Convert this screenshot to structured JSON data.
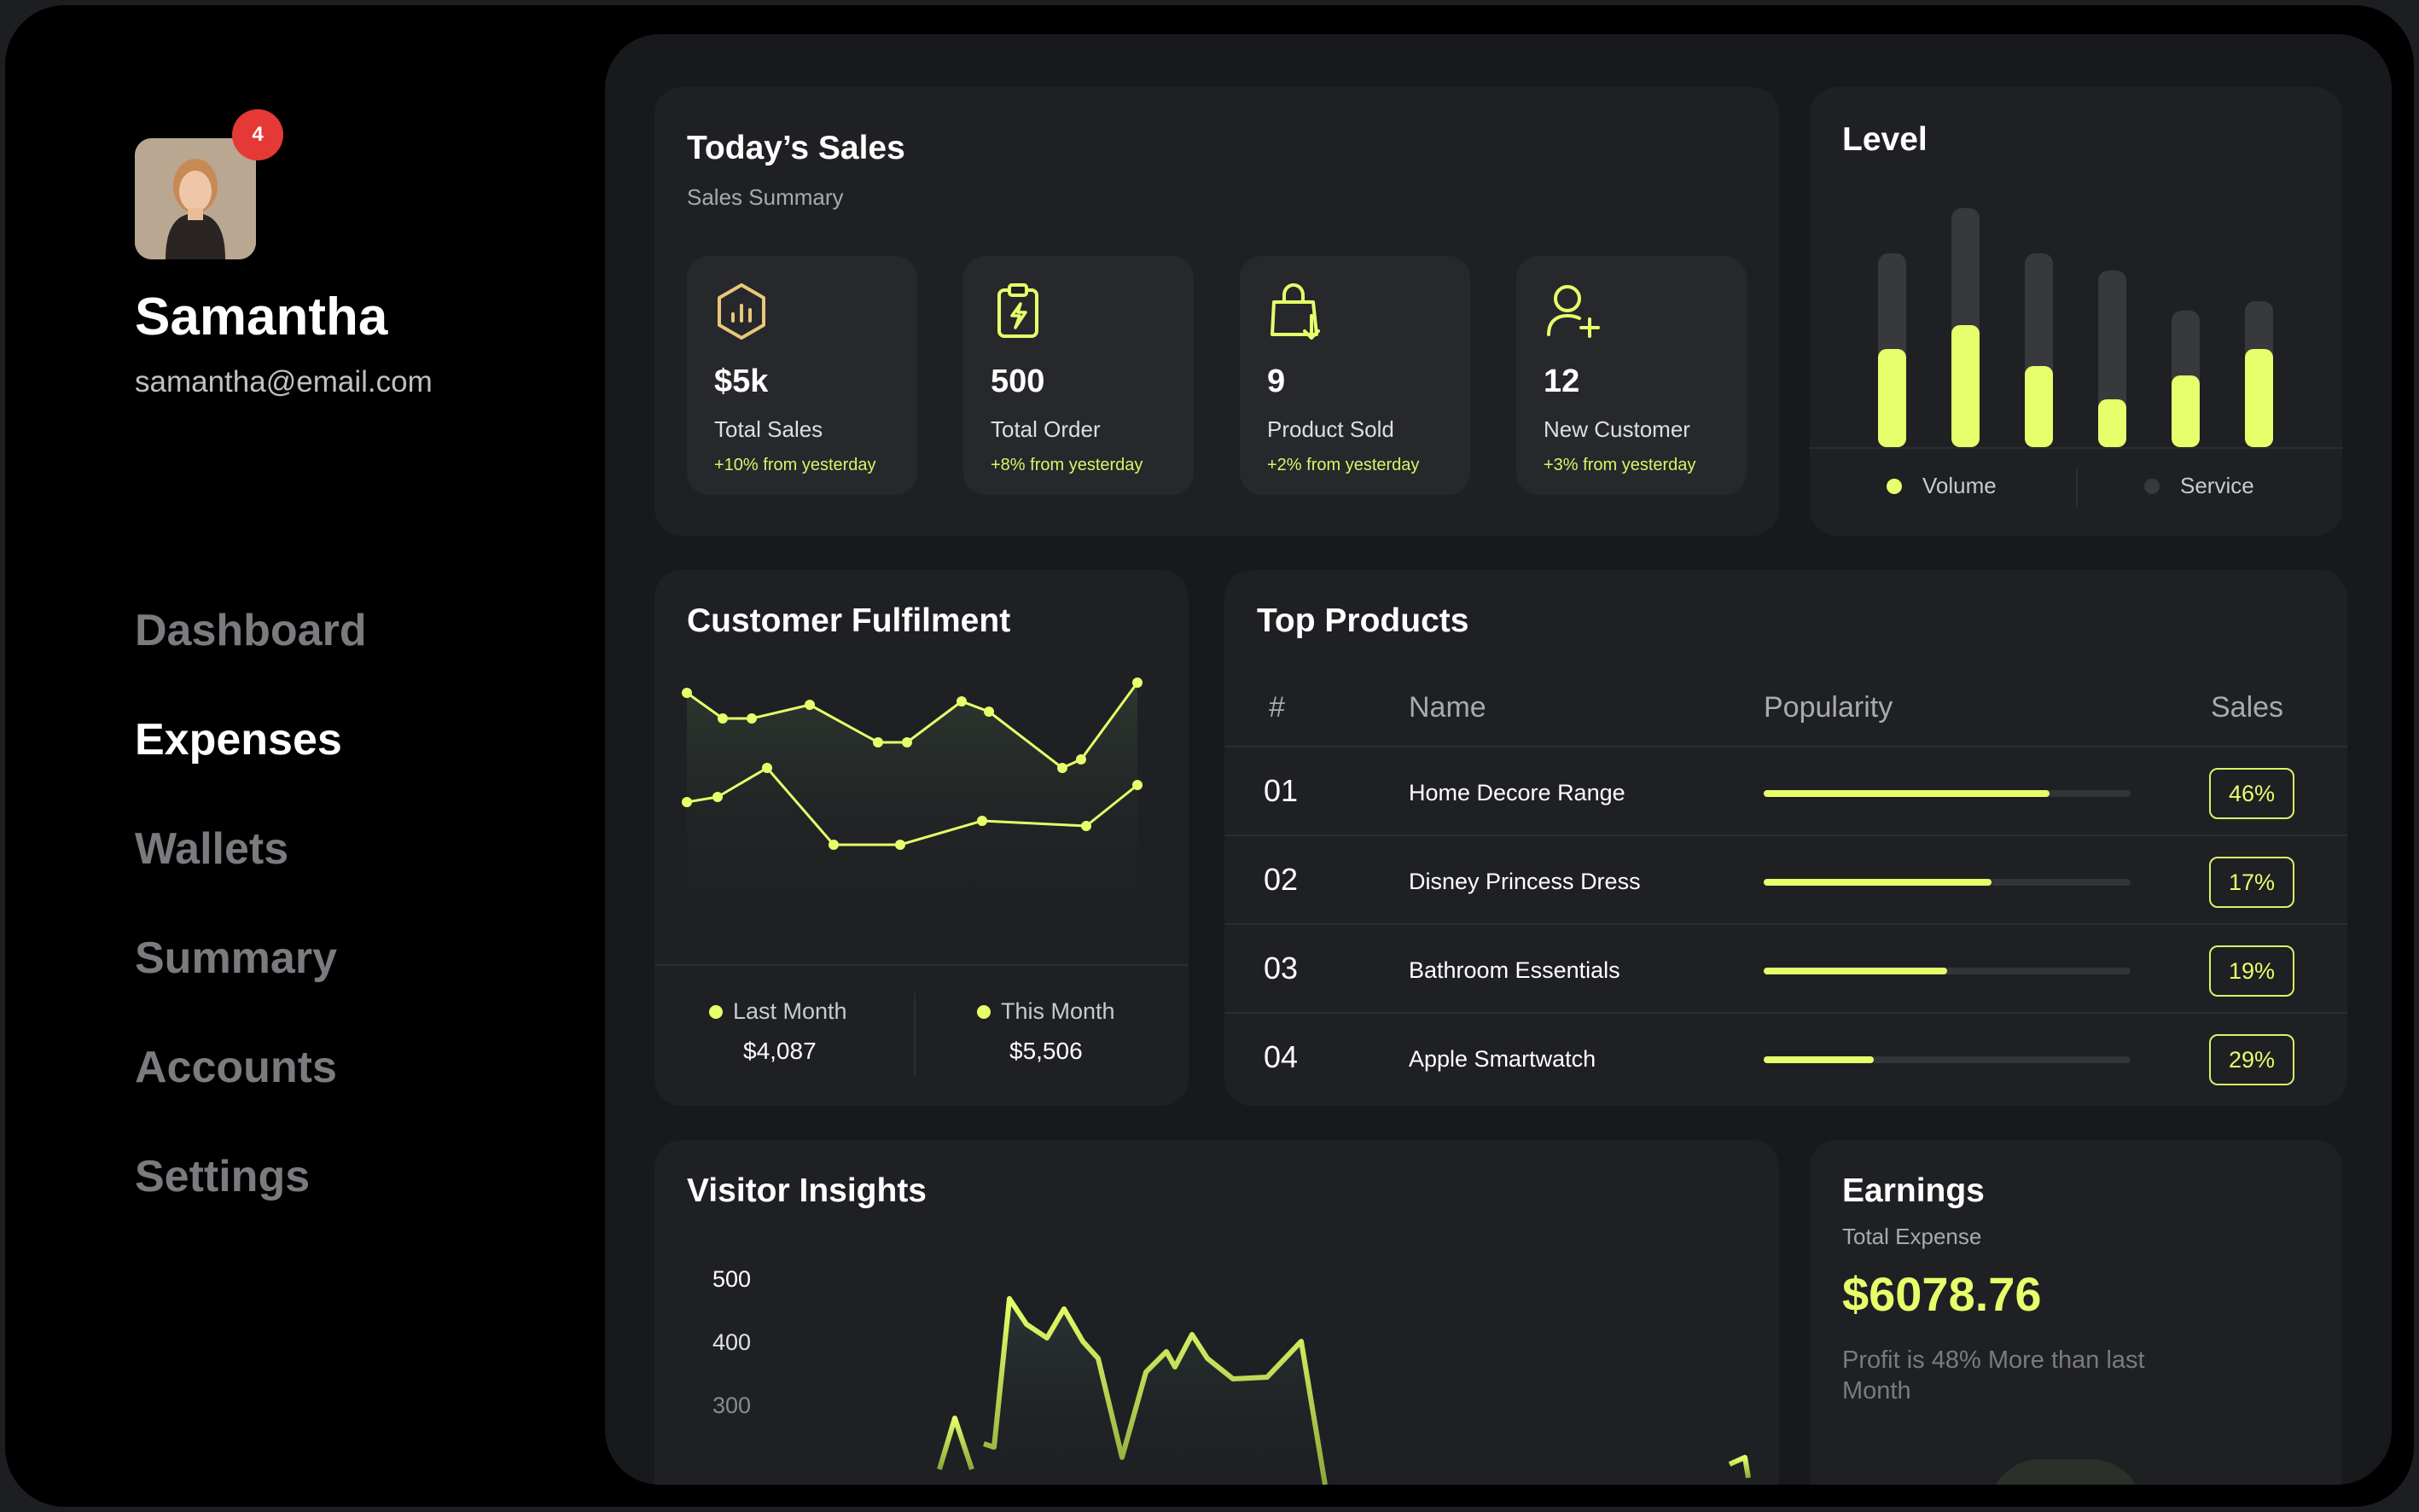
{
  "user": {
    "name": "Samantha",
    "email": "samantha@email.com",
    "notifications": "4"
  },
  "nav": {
    "items": [
      "Dashboard",
      "Expenses",
      "Wallets",
      "Summary",
      "Accounts",
      "Settings"
    ],
    "active": "Expenses"
  },
  "todays_sales": {
    "title": "Today’s Sales",
    "subtitle": "Sales Summary",
    "stats": [
      {
        "value": "$5k",
        "label": "Total Sales",
        "change": "+10% from yesterday",
        "icon": "chart-hexagon-icon"
      },
      {
        "value": "500",
        "label": "Total Order",
        "change": "+8% from yesterday",
        "icon": "clipboard-bolt-icon"
      },
      {
        "value": "9",
        "label": "Product Sold",
        "change": "+2% from yesterday",
        "icon": "shopping-bag-icon"
      },
      {
        "value": "12",
        "label": "New Customer",
        "change": "+3% from yesterday",
        "icon": "user-plus-icon"
      }
    ]
  },
  "level": {
    "title": "Level",
    "legend": [
      "Volume",
      "Service"
    ],
    "colors": {
      "volume": "#e6ff6a",
      "service": "#38393d"
    },
    "bars": [
      {
        "total": 0.81,
        "volume": 0.41
      },
      {
        "total": 1.0,
        "volume": 0.51
      },
      {
        "total": 0.81,
        "volume": 0.34
      },
      {
        "total": 0.74,
        "volume": 0.2
      },
      {
        "total": 0.57,
        "volume": 0.3
      },
      {
        "total": 0.61,
        "volume": 0.41
      }
    ]
  },
  "fulfilment": {
    "title": "Customer Fulfilment",
    "legend": [
      {
        "label": "Last Month",
        "value": "$4,087"
      },
      {
        "label": "This Month",
        "value": "$5,506"
      }
    ]
  },
  "top_products": {
    "title": "Top Products",
    "headers": [
      "#",
      "Name",
      "Popularity",
      "Sales"
    ],
    "rows": [
      {
        "num": "01",
        "name": "Home Decore Range",
        "popularity": 0.78,
        "sales": "46%"
      },
      {
        "num": "02",
        "name": "Disney Princess Dress",
        "popularity": 0.62,
        "sales": "17%"
      },
      {
        "num": "03",
        "name": "Bathroom Essentials",
        "popularity": 0.5,
        "sales": "19%"
      },
      {
        "num": "04",
        "name": "Apple Smartwatch",
        "popularity": 0.3,
        "sales": "29%"
      }
    ]
  },
  "visitor_insights": {
    "title": "Visitor Insights",
    "y_ticks": [
      "500",
      "400",
      "300"
    ]
  },
  "earnings": {
    "title": "Earnings",
    "subtitle": "Total Expense",
    "value": "$6078.76",
    "note": "Profit is 48% More than last Month"
  },
  "accent": "#e6ff6a"
}
